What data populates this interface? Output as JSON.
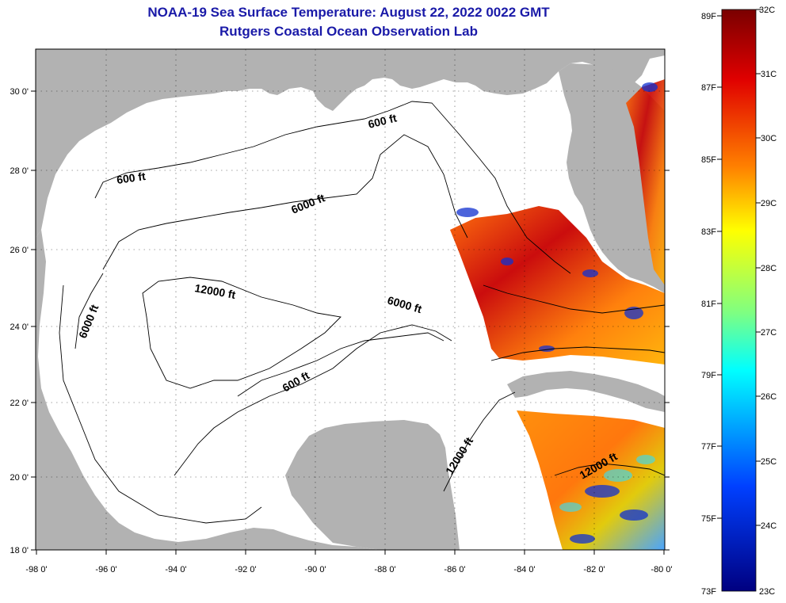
{
  "header": {
    "title": "NOAA-19 Sea Surface Temperature:  August 22, 2022 0022 GMT",
    "subtitle": "Rutgers Coastal Ocean Observation Lab"
  },
  "axes": {
    "lon_labels": [
      "-98 0'",
      "-96 0'",
      "-94 0'",
      "-92 0'",
      "-90 0'",
      "-88 0'",
      "-86 0'",
      "-84 0'",
      "-82 0'",
      "-80 0'"
    ],
    "lat_labels": [
      "18 0'",
      "20 0'",
      "22 0'",
      "24 0'",
      "26 0'",
      "28 0'",
      "30 0'"
    ]
  },
  "contours": {
    "c600_a": "600 ft",
    "c600_b": "600 ft",
    "c600_c": "600 ft",
    "c6000_a": "6000 ft",
    "c6000_b": "6000 ft",
    "c6000_c": "6000 ft",
    "c12000_a": "12000 ft",
    "c12000_b": "12000 ft",
    "c12000_c": "12000 ft"
  },
  "colorbar": {
    "f_labels": [
      "89F",
      "87F",
      "85F",
      "83F",
      "81F",
      "79F",
      "77F",
      "75F",
      "73F"
    ],
    "c_labels": [
      "32C",
      "31C",
      "30C",
      "29C",
      "28C",
      "27C",
      "26C",
      "25C",
      "24C",
      "23C"
    ],
    "colors": {
      "top": "#7a0000",
      "red": "#e00000",
      "orange": "#ff8000",
      "yellow": "#ffff00",
      "green": "#80ff80",
      "cyan": "#00ffff",
      "blue": "#0040ff",
      "bottom": "#000080"
    }
  }
}
